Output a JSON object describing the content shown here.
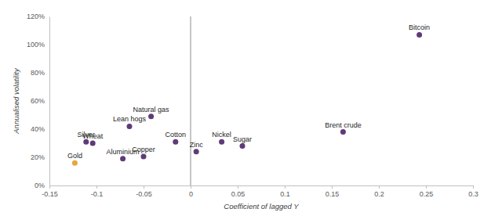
{
  "chart_data": {
    "type": "scatter",
    "x_label": "Coefficient of lagged Y",
    "y_label": "Annualised volatility",
    "labels": [
      "Bitcoin",
      "Brent crude",
      "Sugar",
      "Nickel",
      "Zinc",
      "Cotton",
      "Copper",
      "Natural gas",
      "Lean hogs",
      "Aluminium",
      "Silver",
      "Wheat",
      "Gold"
    ],
    "x": [
      0.243,
      0.162,
      0.055,
      0.033,
      0.006,
      -0.016,
      -0.05,
      -0.042,
      -0.065,
      -0.072,
      -0.111,
      -0.104,
      -0.123
    ],
    "values": [
      107,
      38,
      28,
      31,
      24,
      31,
      20.5,
      49,
      42,
      19,
      31,
      30,
      16
    ],
    "colors": [
      "#5f3a78",
      "#5f3a78",
      "#5f3a78",
      "#5f3a78",
      "#5f3a78",
      "#5f3a78",
      "#5f3a78",
      "#5f3a78",
      "#5f3a78",
      "#5f3a78",
      "#5f3a78",
      "#5f3a78",
      "#e8a640"
    ],
    "xlim": [
      -0.15,
      0.3
    ],
    "ylim": [
      0,
      120
    ],
    "xticks": [
      -0.15,
      -0.1,
      -0.05,
      0,
      0.05,
      0.1,
      0.15,
      0.2,
      0.25,
      0.3
    ],
    "yticks": [
      {
        "value": 0,
        "label": "0%"
      },
      {
        "value": 20,
        "label": "20%"
      },
      {
        "value": 40,
        "label": "40%"
      },
      {
        "value": 60,
        "label": "60%"
      },
      {
        "value": 80,
        "label": "80%"
      },
      {
        "value": 100,
        "label": "100%"
      },
      {
        "value": 120,
        "label": "120%"
      }
    ],
    "grid": false
  }
}
